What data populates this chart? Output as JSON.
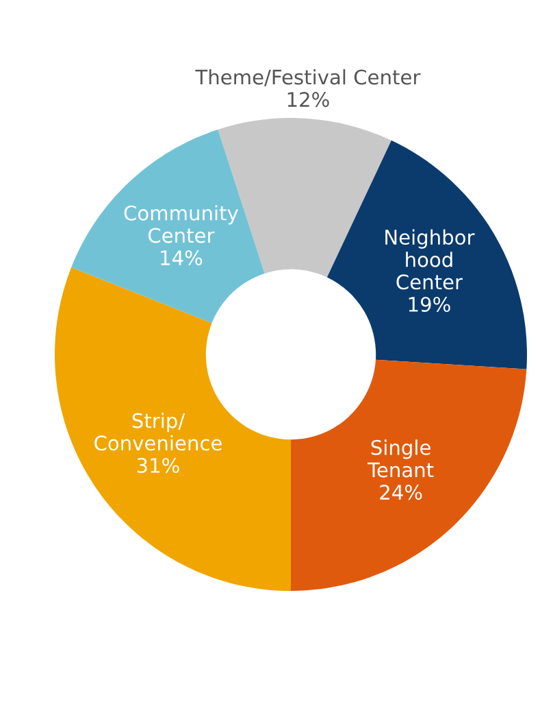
{
  "chart_data": {
    "type": "donut",
    "categories": [
      "Theme/Festival Center",
      "Neighbor\nhood\nCenter",
      "Single\nTenant",
      "Strip/\nConvenience",
      "Community\nCenter"
    ],
    "values": [
      12,
      19,
      24,
      31,
      14
    ],
    "colors": [
      "#c8c8c8",
      "#0b3a6c",
      "#e05a0e",
      "#f0a500",
      "#72c2d6"
    ],
    "value_labels": [
      "12%",
      "19%",
      "24%",
      "31%",
      "14%"
    ]
  }
}
